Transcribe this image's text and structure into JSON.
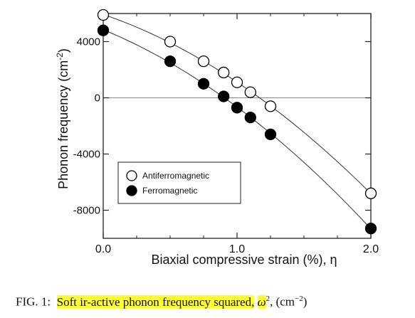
{
  "chart_data": {
    "type": "scatter",
    "xlabel_text": "Biaxial compressive strain (%), ",
    "xlabel_symbol": "η",
    "ylabel_text": "Phonon frequency (cm",
    "ylabel_sup": "-2",
    "ylabel_close": ")",
    "xlim": [
      0,
      2.0
    ],
    "ylim": [
      -10000,
      6000
    ],
    "xticks": [
      0.0,
      1.0,
      2.0
    ],
    "xtick_labels": [
      "0.0",
      "1.0",
      "2.0"
    ],
    "yticks": [
      4000,
      0,
      -4000,
      -8000
    ],
    "ytick_labels": [
      "4000",
      "0",
      "-4000",
      "-8000"
    ],
    "zero_line": true,
    "grid": false,
    "legend_position": "lower-left",
    "series": [
      {
        "name": "Antiferromagnetic",
        "marker": "open-circle",
        "x": [
          0.0,
          0.5,
          0.75,
          0.9,
          1.0,
          1.1,
          1.25,
          2.0
        ],
        "y": [
          5900,
          4000,
          2600,
          1800,
          1100,
          400,
          -600,
          -6800
        ]
      },
      {
        "name": "Ferromagnetic",
        "marker": "filled-circle",
        "x": [
          0.0,
          0.5,
          0.75,
          0.9,
          1.0,
          1.1,
          1.25,
          2.0
        ],
        "y": [
          4800,
          2600,
          1000,
          100,
          -700,
          -1400,
          -2600,
          -9300
        ]
      }
    ]
  },
  "caption": {
    "prefix": "FIG. 1:",
    "highlight": "Soft ir-active phonon frequency squared,",
    "symbol": "ω",
    "symbol_sup": "2",
    "suffix": ", (cm",
    "suffix_sup": "−2",
    "suffix_close": ")"
  }
}
